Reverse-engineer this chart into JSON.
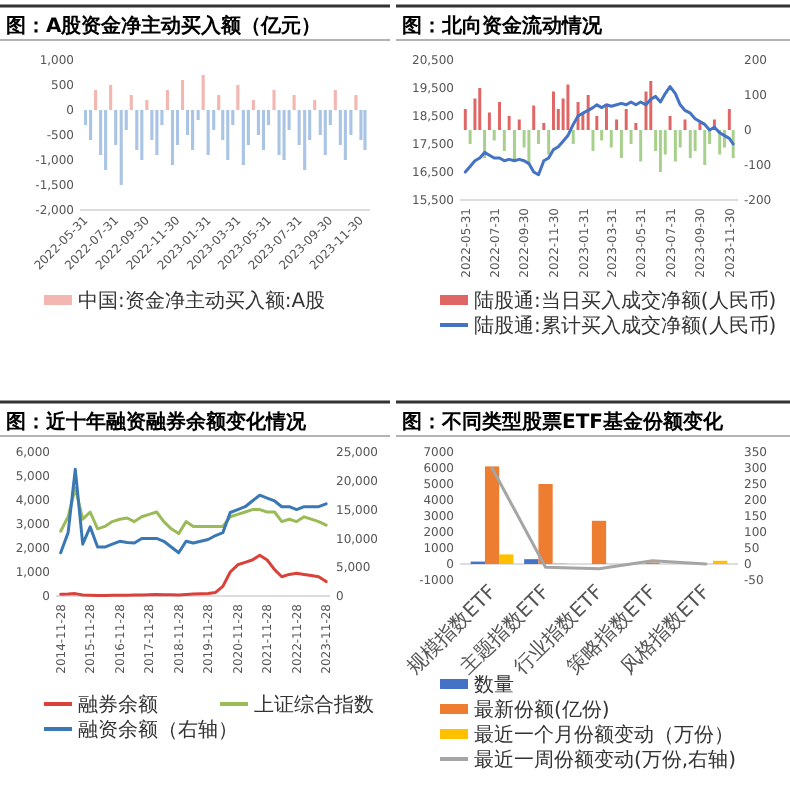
{
  "chart_data": [
    {
      "type": "bar",
      "title": "图：A股资金净主动买入额（亿元）",
      "legend": "bottom",
      "x": [
        "2022-05-31",
        "2022-06-10",
        "2022-06-20",
        "2022-06-30",
        "2022-07-10",
        "2022-07-20",
        "2022-07-30",
        "2022-08-10",
        "2022-08-20",
        "2022-08-30",
        "2022-09-10",
        "2022-09-20",
        "2022-09-30",
        "2022-10-10",
        "2022-10-20",
        "2022-10-30",
        "2022-11-10",
        "2022-11-20",
        "2022-11-30",
        "2022-12-10",
        "2022-12-20",
        "2022-12-30",
        "2023-01-10",
        "2023-01-20",
        "2023-01-30",
        "2023-02-10",
        "2023-02-20",
        "2023-02-28",
        "2023-03-10",
        "2023-03-20",
        "2023-03-30",
        "2023-04-10",
        "2023-04-20",
        "2023-04-30",
        "2023-05-10",
        "2023-05-20",
        "2023-05-30",
        "2023-06-10",
        "2023-06-20",
        "2023-06-30",
        "2023-07-10",
        "2023-07-20",
        "2023-07-30",
        "2023-08-10",
        "2023-08-20",
        "2023-08-30",
        "2023-09-10",
        "2023-09-20",
        "2023-09-30",
        "2023-10-10",
        "2023-10-20",
        "2023-10-30",
        "2023-11-10",
        "2023-11-20",
        "2023-11-30",
        "2023-12-08"
      ],
      "xlim": [
        "2022-05-20",
        "2023-12-18"
      ],
      "xticks": [
        "2022-05-31",
        "2022-07-31",
        "2022-09-30",
        "2022-11-30",
        "2023-01-31",
        "2023-03-31",
        "2023-05-31",
        "2023-07-31",
        "2023-09-30",
        "2023-11-30"
      ],
      "ylim": [
        -2000,
        1000
      ],
      "yticks": [
        {
          "value": -2000,
          "label": "-2,000"
        },
        {
          "value": -1500,
          "label": "-1,500"
        },
        {
          "value": -1000,
          "label": "-1,000"
        },
        {
          "value": -500,
          "label": "-500"
        },
        {
          "value": 0,
          "label": "0"
        },
        {
          "value": 500,
          "label": "500"
        },
        {
          "value": 1000,
          "label": "1,000"
        }
      ],
      "series": [
        {
          "name": "中国:资金净主动买入额:A股",
          "color": "#f4b6b0",
          "values": [
            -300,
            -600,
            400,
            -900,
            -1200,
            500,
            -700,
            -1500,
            -400,
            300,
            -800,
            -1000,
            200,
            -600,
            -900,
            -300,
            400,
            -1100,
            -700,
            600,
            -500,
            -800,
            -200,
            700,
            -900,
            -400,
            300,
            -600,
            -1000,
            -300,
            500,
            -1100,
            -700,
            200,
            -500,
            -800,
            -300,
            400,
            -900,
            -1000,
            -400,
            300,
            -700,
            -1200,
            -600,
            200,
            -500,
            -900,
            -300,
            400,
            -700,
            -1000,
            -500,
            300,
            -600,
            -800
          ],
          "colors": [
            "#a9c4e4",
            "#a9c4e4",
            "#f4b6b0",
            "#a9c4e4",
            "#a9c4e4",
            "#f4b6b0",
            "#a9c4e4",
            "#a9c4e4",
            "#a9c4e4",
            "#f4b6b0",
            "#a9c4e4",
            "#a9c4e4",
            "#f4b6b0",
            "#a9c4e4",
            "#a9c4e4",
            "#a9c4e4",
            "#f4b6b0",
            "#a9c4e4",
            "#a9c4e4",
            "#f4b6b0",
            "#a9c4e4",
            "#a9c4e4",
            "#a9c4e4",
            "#f4b6b0",
            "#a9c4e4",
            "#a9c4e4",
            "#f4b6b0",
            "#a9c4e4",
            "#a9c4e4",
            "#a9c4e4",
            "#f4b6b0",
            "#a9c4e4",
            "#a9c4e4",
            "#f4b6b0",
            "#a9c4e4",
            "#a9c4e4",
            "#a9c4e4",
            "#f4b6b0",
            "#a9c4e4",
            "#a9c4e4",
            "#a9c4e4",
            "#f4b6b0",
            "#a9c4e4",
            "#a9c4e4",
            "#a9c4e4",
            "#f4b6b0",
            "#a9c4e4",
            "#a9c4e4",
            "#a9c4e4",
            "#f4b6b0",
            "#a9c4e4",
            "#a9c4e4",
            "#a9c4e4",
            "#f4b6b0",
            "#a9c4e4",
            "#a9c4e4"
          ]
        }
      ]
    },
    {
      "type": "bar",
      "title": "图：北向资金流动情况",
      "legend": "bottom",
      "x": [
        "2022-05-31",
        "2022-06-10",
        "2022-06-20",
        "2022-06-30",
        "2022-07-10",
        "2022-07-20",
        "2022-07-30",
        "2022-08-10",
        "2022-08-20",
        "2022-08-30",
        "2022-09-10",
        "2022-09-20",
        "2022-09-30",
        "2022-10-10",
        "2022-10-20",
        "2022-10-30",
        "2022-11-10",
        "2022-11-20",
        "2022-11-30",
        "2022-12-10",
        "2022-12-20",
        "2022-12-30",
        "2023-01-10",
        "2023-01-20",
        "2023-01-30",
        "2023-02-10",
        "2023-02-20",
        "2023-02-28",
        "2023-03-10",
        "2023-03-20",
        "2023-03-30",
        "2023-04-10",
        "2023-04-20",
        "2023-04-30",
        "2023-05-10",
        "2023-05-20",
        "2023-05-30",
        "2023-06-10",
        "2023-06-20",
        "2023-06-30",
        "2023-07-10",
        "2023-07-20",
        "2023-07-30",
        "2023-08-10",
        "2023-08-20",
        "2023-08-30",
        "2023-09-10",
        "2023-09-20",
        "2023-09-30",
        "2023-10-10",
        "2023-10-20",
        "2023-10-30",
        "2023-11-10",
        "2023-11-20",
        "2023-11-30",
        "2023-12-08"
      ],
      "xlim": [
        "2022-05-20",
        "2023-12-18"
      ],
      "xticks": [
        "2022-05-31",
        "2022-07-31",
        "2022-09-30",
        "2022-11-30",
        "2023-01-31",
        "2023-03-31",
        "2023-05-31",
        "2023-07-31",
        "2023-09-30",
        "2023-11-30"
      ],
      "ylim": [
        15500,
        20500
      ],
      "yticks": [
        {
          "value": 15500,
          "label": "15,500"
        },
        {
          "value": 16500,
          "label": "16,500"
        },
        {
          "value": 17500,
          "label": "17,500"
        },
        {
          "value": 18500,
          "label": "18,500"
        },
        {
          "value": 19500,
          "label": "19,500"
        },
        {
          "value": 20500,
          "label": "20,500"
        }
      ],
      "y2lim": [
        -200,
        200
      ],
      "y2ticks": [
        -200,
        -100,
        0,
        100,
        200
      ],
      "series": [
        {
          "name": "陆股通:当日买入成交净额(人民币)",
          "axis": "y2",
          "color": "#e06666",
          "values": [
            60,
            -40,
            90,
            120,
            -80,
            50,
            -30,
            80,
            -60,
            40,
            -90,
            30,
            -50,
            -100,
            70,
            -40,
            20,
            -70,
            110,
            60,
            90,
            130,
            -40,
            80,
            50,
            100,
            -60,
            40,
            -30,
            70,
            -50,
            30,
            -80,
            60,
            -40,
            20,
            -90,
            110,
            140,
            -60,
            -120,
            -70,
            40,
            -90,
            -50,
            30,
            -80,
            -60,
            20,
            -100,
            -40,
            30,
            -70,
            -50,
            60,
            -80
          ],
          "colors": [
            "#e06666",
            "#a8d08d",
            "#e06666",
            "#e06666",
            "#a8d08d",
            "#e06666",
            "#a8d08d",
            "#e06666",
            "#a8d08d",
            "#e06666",
            "#a8d08d",
            "#e06666",
            "#a8d08d",
            "#a8d08d",
            "#e06666",
            "#a8d08d",
            "#e06666",
            "#a8d08d",
            "#e06666",
            "#e06666",
            "#e06666",
            "#e06666",
            "#a8d08d",
            "#e06666",
            "#e06666",
            "#e06666",
            "#a8d08d",
            "#e06666",
            "#a8d08d",
            "#e06666",
            "#a8d08d",
            "#e06666",
            "#a8d08d",
            "#e06666",
            "#a8d08d",
            "#e06666",
            "#a8d08d",
            "#e06666",
            "#e06666",
            "#a8d08d",
            "#a8d08d",
            "#a8d08d",
            "#e06666",
            "#a8d08d",
            "#a8d08d",
            "#e06666",
            "#a8d08d",
            "#a8d08d",
            "#e06666",
            "#a8d08d",
            "#a8d08d",
            "#e06666",
            "#a8d08d",
            "#a8d08d",
            "#e06666",
            "#a8d08d"
          ]
        },
        {
          "name": "陆股通:累计买入成交净额(人民币)",
          "type": "line",
          "axis": "y",
          "color": "#4472c4",
          "values": [
            16500,
            16700,
            16900,
            17000,
            17200,
            17100,
            17000,
            17000,
            16900,
            16950,
            16900,
            16950,
            16900,
            16800,
            16500,
            16400,
            16900,
            17000,
            17300,
            17400,
            17600,
            17800,
            18200,
            18500,
            18600,
            18700,
            18800,
            18900,
            18800,
            18900,
            18850,
            18900,
            18950,
            18900,
            19000,
            18900,
            19000,
            18900,
            19100,
            19200,
            19000,
            19300,
            19550,
            19300,
            18900,
            18700,
            18600,
            18400,
            18300,
            18200,
            18000,
            18100,
            17900,
            17800,
            17700,
            17500
          ]
        }
      ]
    },
    {
      "type": "line",
      "title": "图：近十年融资融券余额变化情况",
      "legend": "bottom",
      "x": [
        "2014-11-28",
        "2015-02-28",
        "2015-05-28",
        "2015-08-28",
        "2015-11-28",
        "2016-02-28",
        "2016-05-28",
        "2016-08-28",
        "2016-11-28",
        "2017-02-28",
        "2017-05-28",
        "2017-08-28",
        "2017-11-28",
        "2018-02-28",
        "2018-05-28",
        "2018-08-28",
        "2018-11-28",
        "2019-02-28",
        "2019-05-28",
        "2019-08-28",
        "2019-11-28",
        "2020-02-28",
        "2020-05-28",
        "2020-08-28",
        "2020-11-28",
        "2021-02-28",
        "2021-05-28",
        "2021-08-28",
        "2021-11-28",
        "2022-02-28",
        "2022-05-28",
        "2022-08-28",
        "2022-11-28",
        "2023-02-28",
        "2023-05-28",
        "2023-08-28",
        "2023-11-28"
      ],
      "xlim": [
        "2014-10-01",
        "2024-01-15"
      ],
      "xticks": [
        "2014-11-28",
        "2015-11-28",
        "2016-11-28",
        "2017-11-28",
        "2018-11-28",
        "2019-11-28",
        "2020-11-28",
        "2021-11-28",
        "2022-11-28",
        "2023-11-28"
      ],
      "ylim": [
        0,
        6000
      ],
      "yticks": [
        {
          "value": 0,
          "label": "0"
        },
        {
          "value": 1000,
          "label": "1,000"
        },
        {
          "value": 2000,
          "label": "2,000"
        },
        {
          "value": 3000,
          "label": "3,000"
        },
        {
          "value": 4000,
          "label": "4,000"
        },
        {
          "value": 5000,
          "label": "5,000"
        },
        {
          "value": 6000,
          "label": "6,000"
        }
      ],
      "y2lim": [
        0,
        25000
      ],
      "y2ticks": [
        {
          "value": 0,
          "label": "0"
        },
        {
          "value": 5000,
          "label": "5,000"
        },
        {
          "value": 10000,
          "label": "10,000"
        },
        {
          "value": 15000,
          "label": "15,000"
        },
        {
          "value": 20000,
          "label": "20,000"
        },
        {
          "value": 25000,
          "label": "25,000"
        }
      ],
      "series": [
        {
          "name": "融券余额",
          "color": "#d9423a",
          "axis": "y",
          "values": [
            70,
            80,
            100,
            40,
            30,
            25,
            25,
            30,
            30,
            35,
            40,
            45,
            50,
            60,
            55,
            50,
            45,
            60,
            80,
            90,
            100,
            150,
            400,
            1000,
            1300,
            1400,
            1500,
            1700,
            1500,
            1100,
            800,
            900,
            950,
            900,
            850,
            800,
            600
          ]
        },
        {
          "name": "上证综合指数",
          "color": "#9bbb59",
          "axis": "y",
          "values": [
            2700,
            3300,
            4500,
            3200,
            3500,
            2800,
            2900,
            3100,
            3200,
            3250,
            3100,
            3300,
            3400,
            3500,
            3100,
            2800,
            2600,
            3100,
            2900,
            2900,
            2900,
            2900,
            2900,
            3300,
            3400,
            3500,
            3600,
            3600,
            3500,
            3500,
            3100,
            3200,
            3100,
            3300,
            3200,
            3100,
            2950
          ]
        },
        {
          "name": "融资余额（右轴）",
          "color": "#3a78b5",
          "axis": "y2",
          "values": [
            7500,
            11000,
            22000,
            9000,
            12000,
            8500,
            8500,
            9000,
            9500,
            9300,
            9200,
            10000,
            10000,
            10000,
            9500,
            8500,
            7500,
            9500,
            9200,
            9500,
            9800,
            10500,
            11000,
            14500,
            15000,
            15500,
            16500,
            17500,
            17000,
            16500,
            15500,
            15500,
            15000,
            15500,
            15500,
            15500,
            16000
          ]
        }
      ]
    },
    {
      "type": "bar",
      "title": "图：不同类型股票ETF基金份额变化",
      "legend": "bottom",
      "categories": [
        "规模指数ETF",
        "主题指数ETF",
        "行业指数ETF",
        "策略指数ETF",
        "风格指数ETF"
      ],
      "ylim": [
        -1000,
        7000
      ],
      "yticks": [
        -1000,
        0,
        1000,
        2000,
        3000,
        4000,
        5000,
        6000,
        7000
      ],
      "y2lim": [
        -50,
        350
      ],
      "y2ticks": [
        -50,
        0,
        50,
        100,
        150,
        200,
        250,
        300,
        350
      ],
      "series": [
        {
          "name": "数量",
          "axis": "y",
          "color": "#4472c4",
          "values": [
            150,
            300,
            null,
            null,
            null
          ]
        },
        {
          "name": "最新份额(亿份)",
          "axis": "y",
          "color": "#ed7d31",
          "values": [
            6100,
            5000,
            2700,
            100,
            null
          ]
        },
        {
          "name": "最近一个月份额变动（万份）",
          "axis": "y",
          "color": "#ffc000",
          "values": [
            600,
            50,
            0,
            0,
            200
          ]
        },
        {
          "name": "最近一周份额变动(万份,右轴)",
          "type": "line",
          "axis": "y2",
          "color": "#a5a5a5",
          "values": [
            300,
            -10,
            -15,
            10,
            0
          ]
        }
      ]
    }
  ]
}
